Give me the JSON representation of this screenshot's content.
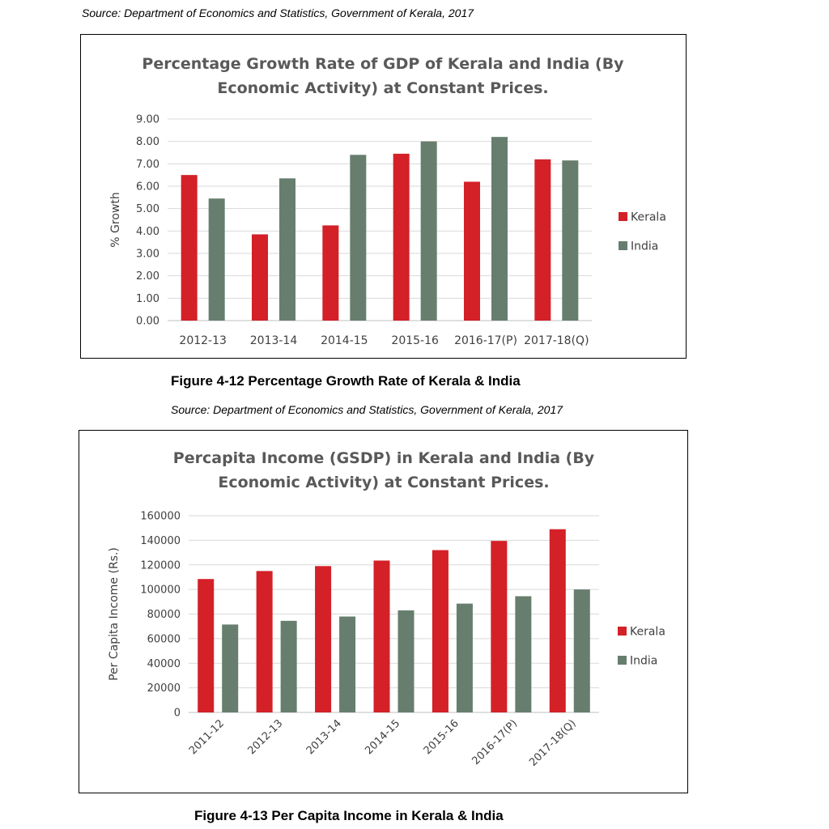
{
  "sources": [
    "Source: Department of Economics and Statistics, Government of Kerala, 2017",
    "Source: Department of Economics and Statistics, Government of Kerala, 2017"
  ],
  "captions": [
    "Figure 4-12 Percentage Growth Rate of Kerala & India",
    "Figure 4-13 Per Capita Income in Kerala & India"
  ],
  "colors": {
    "kerala": "#d42027",
    "india": "#677e6f",
    "grid": "#d9d9d9",
    "axis": "#bfbfbf"
  },
  "chart_data": [
    {
      "type": "bar",
      "title_lines": [
        "Percentage Growth Rate of GDP of Kerala and India (By",
        "Economic Activity) at Constant Prices."
      ],
      "xlabel": "",
      "ylabel": "% Growth",
      "ylim": [
        0,
        9
      ],
      "ytick_values": [
        0,
        1,
        2,
        3,
        4,
        5,
        6,
        7,
        8,
        9
      ],
      "ytick_labels": [
        "0.00",
        "1.00",
        "2.00",
        "3.00",
        "4.00",
        "5.00",
        "6.00",
        "7.00",
        "8.00",
        "9.00"
      ],
      "grid": true,
      "legend_position": "right",
      "categories": [
        "2012-13",
        "2013-14",
        "2014-15",
        "2015-16",
        "2016-17(P)",
        "2017-18(Q)"
      ],
      "series": [
        {
          "name": "Kerala",
          "values": [
            6.5,
            3.85,
            4.25,
            7.45,
            6.2,
            7.2
          ]
        },
        {
          "name": "India",
          "values": [
            5.45,
            6.35,
            7.4,
            8.0,
            8.2,
            7.15
          ]
        }
      ]
    },
    {
      "type": "bar",
      "title_lines": [
        "Percapita Income (GSDP) in Kerala and India (By",
        "Economic Activity) at Constant Prices."
      ],
      "xlabel": "",
      "ylabel": "Per Capita Income (Rs.)",
      "ylim": [
        0,
        160000
      ],
      "ytick_values": [
        0,
        20000,
        40000,
        60000,
        80000,
        100000,
        120000,
        140000,
        160000
      ],
      "ytick_labels": [
        "0",
        "20000",
        "40000",
        "60000",
        "80000",
        "100000",
        "120000",
        "140000",
        "160000"
      ],
      "grid": true,
      "legend_position": "right",
      "categories": [
        "2011-12",
        "2012-13",
        "2013-14",
        "2014-15",
        "2015-16",
        "2016-17(P)",
        "2017-18(Q)"
      ],
      "series": [
        {
          "name": "Kerala",
          "values": [
            108500,
            115000,
            119000,
            123500,
            132000,
            139500,
            149000
          ]
        },
        {
          "name": "India",
          "values": [
            71500,
            74500,
            78000,
            83000,
            88500,
            94500,
            100000
          ]
        }
      ]
    }
  ]
}
